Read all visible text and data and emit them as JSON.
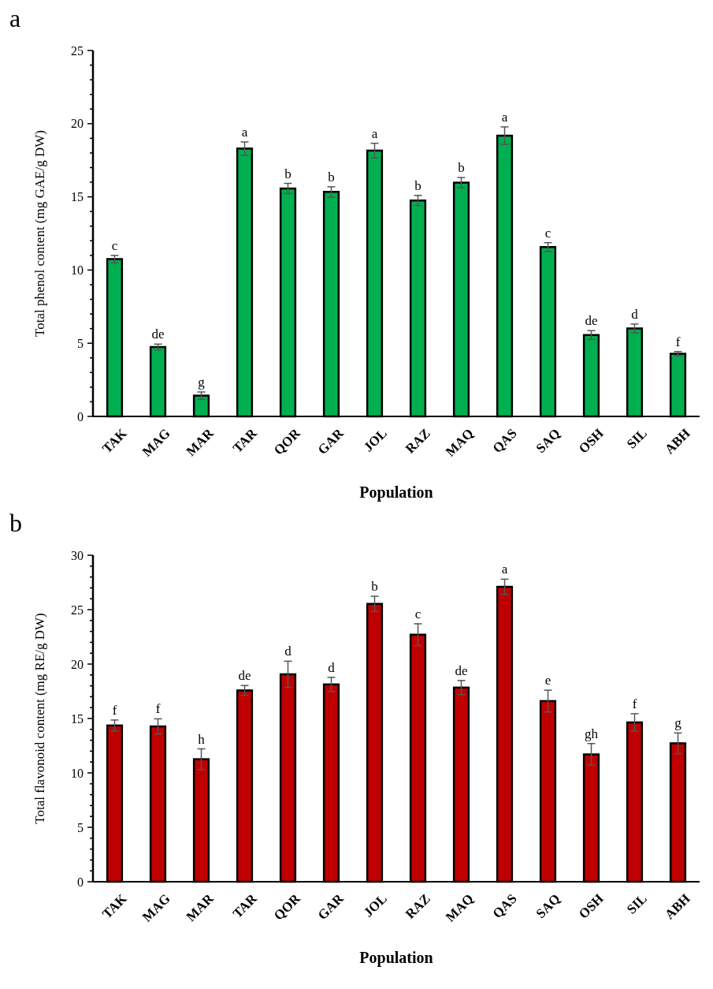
{
  "chart_data": [
    {
      "type": "bar",
      "title": "a",
      "xlabel": "Population",
      "ylabel": "Total phenol content (mg GAE/g DW)",
      "color": "#00b050",
      "categories": [
        "TAK",
        "MAG",
        "MAR",
        "TAR",
        "QOR",
        "GAR",
        "JOL",
        "RAZ",
        "MAQ",
        "QAS",
        "SAQ",
        "OSH",
        "SIL",
        "ABH"
      ],
      "values": [
        10.75,
        4.74,
        1.42,
        18.3,
        15.57,
        15.34,
        18.16,
        14.75,
        15.97,
        19.18,
        11.57,
        5.56,
        6.01,
        4.28
      ],
      "errors": [
        0.25,
        0.2,
        0.25,
        0.45,
        0.35,
        0.35,
        0.5,
        0.35,
        0.35,
        0.6,
        0.3,
        0.3,
        0.3,
        0.15
      ],
      "ylim": [
        0,
        25
      ],
      "yticks": [
        0,
        {
          "value": 1,
          "label": null
        },
        {
          "value": 2,
          "label": null
        },
        {
          "value": 3,
          "label": null
        },
        {
          "value": 4,
          "label": null
        },
        5,
        {
          "value": 6,
          "label": null
        },
        {
          "value": 7,
          "label": null
        },
        {
          "value": 8,
          "label": null
        },
        {
          "value": 9,
          "label": null
        },
        10,
        {
          "value": 11,
          "label": null
        },
        {
          "value": 12,
          "label": null
        },
        {
          "value": 13,
          "label": null
        },
        {
          "value": 14,
          "label": null
        },
        15,
        {
          "value": 16,
          "label": null
        },
        {
          "value": 17,
          "label": null
        },
        {
          "value": 18,
          "label": null
        },
        {
          "value": 19,
          "label": null
        },
        20,
        {
          "value": 21,
          "label": null
        },
        {
          "value": 22,
          "label": null
        },
        {
          "value": 23,
          "label": null
        },
        {
          "value": 24,
          "label": null
        },
        25
      ],
      "annotations": [
        {
          "text": "c",
          "x": "TAK",
          "y": 11.0
        },
        {
          "text": "de",
          "x": "MAG",
          "y": 4.94
        },
        {
          "text": "g",
          "x": "MAR",
          "y": 1.67
        },
        {
          "text": "a",
          "x": "TAR",
          "y": 18.75
        },
        {
          "text": "b",
          "x": "QOR",
          "y": 15.92
        },
        {
          "text": "b",
          "x": "GAR",
          "y": 15.69
        },
        {
          "text": "a",
          "x": "JOL",
          "y": 18.66
        },
        {
          "text": "b",
          "x": "RAZ",
          "y": 15.1
        },
        {
          "text": "b",
          "x": "MAQ",
          "y": 16.32
        },
        {
          "text": "a",
          "x": "QAS",
          "y": 19.78
        },
        {
          "text": "c",
          "x": "SAQ",
          "y": 11.87
        },
        {
          "text": "de",
          "x": "OSH",
          "y": 5.86
        },
        {
          "text": "d",
          "x": "SIL",
          "y": 6.31
        },
        {
          "text": "f",
          "x": "ABH",
          "y": 4.43
        }
      ]
    },
    {
      "type": "bar",
      "title": "b",
      "xlabel": "Population",
      "ylabel": "Total flavonoid content (mg RE/g DW)",
      "color": "#c00000",
      "categories": [
        "TAK",
        "MAG",
        "MAR",
        "TAR",
        "QOR",
        "GAR",
        "JOL",
        "RAZ",
        "MAQ",
        "QAS",
        "SAQ",
        "OSH",
        "SIL",
        "ABH"
      ],
      "values": [
        14.36,
        14.27,
        11.26,
        17.58,
        19.06,
        18.13,
        25.53,
        22.7,
        17.84,
        27.1,
        16.6,
        11.7,
        14.64,
        12.72
      ],
      "errors": [
        0.5,
        0.7,
        0.95,
        0.45,
        1.2,
        0.65,
        0.7,
        1.0,
        0.65,
        0.7,
        1.0,
        1.0,
        0.8,
        0.95
      ],
      "ylim": [
        0,
        30
      ],
      "yticks": [
        0,
        {
          "value": 1,
          "label": null
        },
        {
          "value": 2,
          "label": null
        },
        {
          "value": 3,
          "label": null
        },
        {
          "value": 4,
          "label": null
        },
        5,
        {
          "value": 6,
          "label": null
        },
        {
          "value": 7,
          "label": null
        },
        {
          "value": 8,
          "label": null
        },
        {
          "value": 9,
          "label": null
        },
        10,
        {
          "value": 11,
          "label": null
        },
        {
          "value": 12,
          "label": null
        },
        {
          "value": 13,
          "label": null
        },
        {
          "value": 14,
          "label": null
        },
        15,
        {
          "value": 16,
          "label": null
        },
        {
          "value": 17,
          "label": null
        },
        {
          "value": 18,
          "label": null
        },
        {
          "value": 19,
          "label": null
        },
        20,
        {
          "value": 21,
          "label": null
        },
        {
          "value": 22,
          "label": null
        },
        {
          "value": 23,
          "label": null
        },
        {
          "value": 24,
          "label": null
        },
        25,
        {
          "value": 26,
          "label": null
        },
        {
          "value": 27,
          "label": null
        },
        {
          "value": 28,
          "label": null
        },
        {
          "value": 29,
          "label": null
        },
        30
      ],
      "annotations": [
        {
          "text": "f",
          "x": "TAK",
          "y": 14.86
        },
        {
          "text": "f",
          "x": "MAG",
          "y": 14.97
        },
        {
          "text": "h",
          "x": "MAR",
          "y": 12.21
        },
        {
          "text": "de",
          "x": "TAR",
          "y": 18.03
        },
        {
          "text": "d",
          "x": "QOR",
          "y": 20.26
        },
        {
          "text": "d",
          "x": "GAR",
          "y": 18.78
        },
        {
          "text": "b",
          "x": "JOL",
          "y": 26.23
        },
        {
          "text": "c",
          "x": "RAZ",
          "y": 23.7
        },
        {
          "text": "de",
          "x": "MAQ",
          "y": 18.49
        },
        {
          "text": "a",
          "x": "QAS",
          "y": 27.8
        },
        {
          "text": "e",
          "x": "SAQ",
          "y": 17.6
        },
        {
          "text": "gh",
          "x": "OSH",
          "y": 12.7
        },
        {
          "text": "f",
          "x": "SIL",
          "y": 15.44
        },
        {
          "text": "g",
          "x": "ABH",
          "y": 13.67
        }
      ]
    }
  ]
}
